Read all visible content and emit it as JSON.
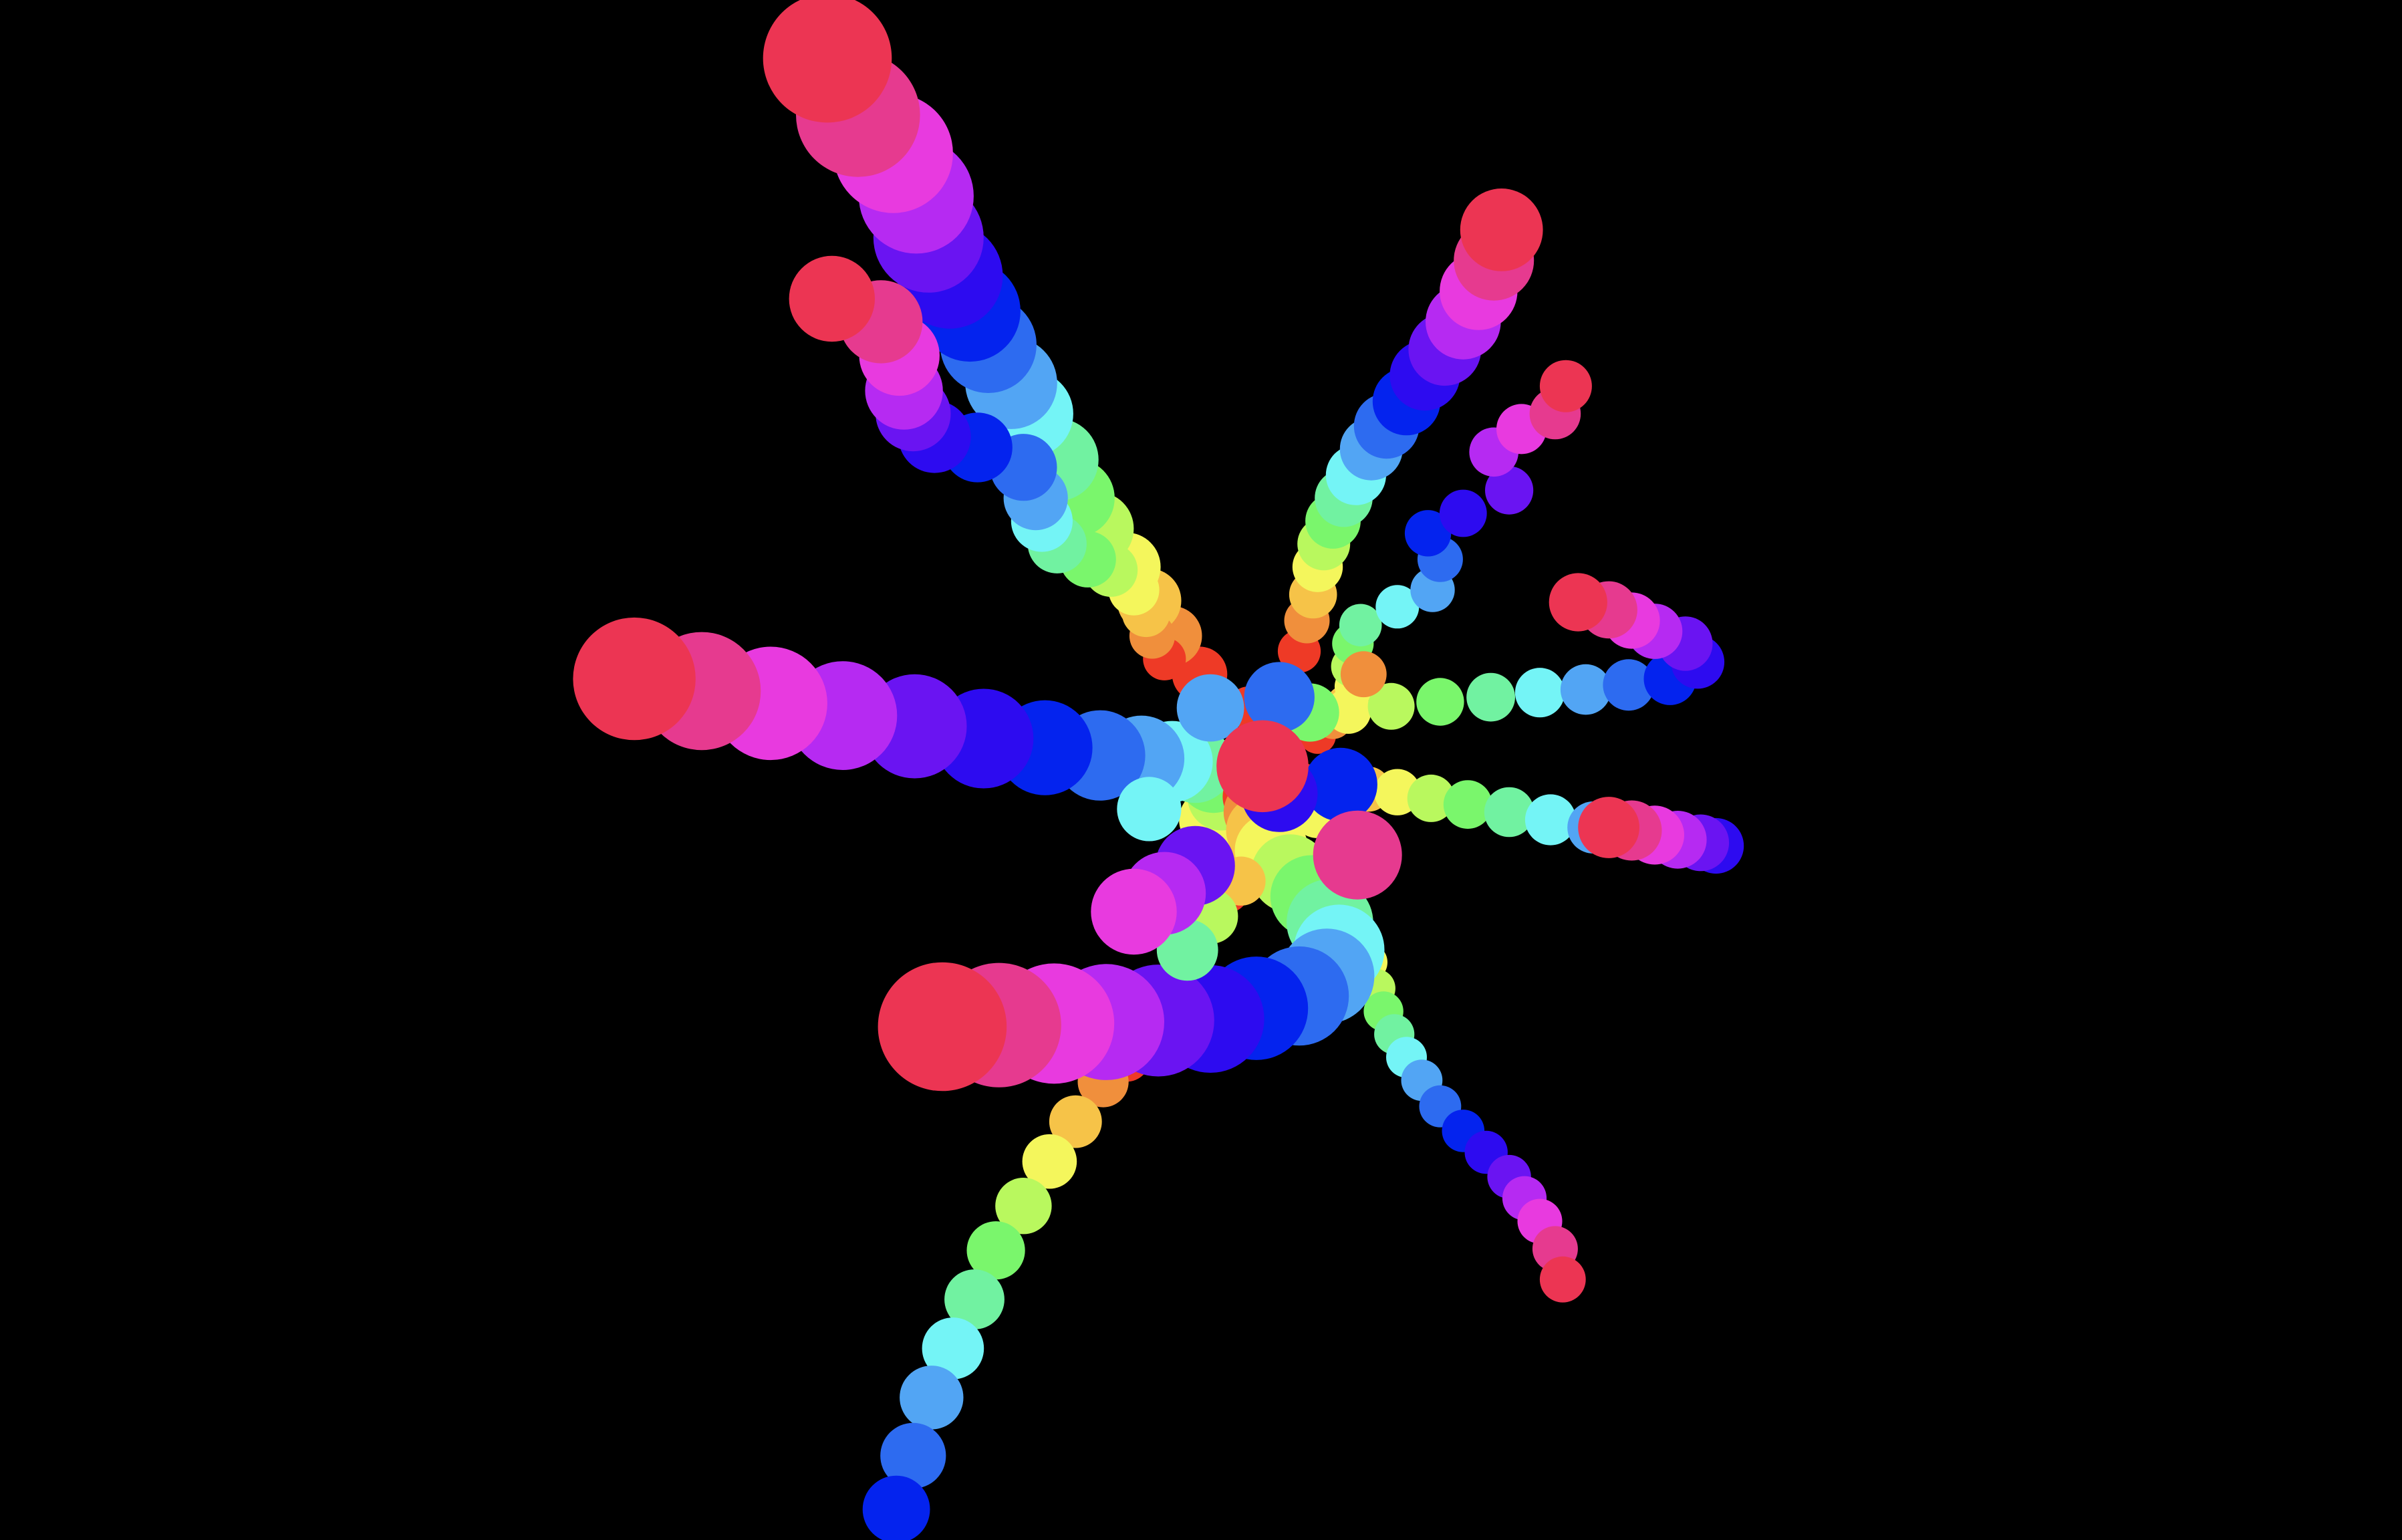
{
  "scene": {
    "background": "#000000",
    "palette": [
      "#ec3553",
      "#e63a8f",
      "#e83adf",
      "#b62af2",
      "#6a14f2",
      "#2d0bf0",
      "#0423ee",
      "#2d6bf0",
      "#52a5f4",
      "#74f4f6",
      "#71f2a1",
      "#7af66c",
      "#b9f85e",
      "#f4f65c",
      "#f6c348",
      "#f08f3c",
      "#ee3a26"
    ],
    "trails": [
      {
        "name": "upper-left-large-arm",
        "colors": [
          0,
          1,
          2,
          3,
          4,
          5,
          6,
          7,
          8,
          9,
          10,
          11,
          12,
          13,
          14,
          15,
          16
        ]
      },
      {
        "name": "upper-left-small-arm",
        "colors": [
          0,
          1,
          2,
          3,
          4,
          5,
          6,
          7,
          8,
          9,
          10,
          11,
          12,
          13,
          14,
          15,
          16
        ]
      },
      {
        "name": "upper-right-arm",
        "colors": [
          0,
          1,
          2,
          3,
          4,
          5,
          6,
          7,
          8,
          9,
          10,
          11,
          12,
          13,
          14,
          15,
          16
        ]
      },
      {
        "name": "upper-right-hook",
        "colors": [
          0,
          1,
          2,
          3,
          4,
          5,
          6,
          7,
          8,
          9,
          10,
          11,
          12,
          13,
          14,
          15,
          16
        ]
      },
      {
        "name": "right-hook",
        "colors": [
          0,
          1,
          2,
          3,
          4,
          5,
          6,
          7,
          8,
          9,
          10,
          11,
          12,
          13,
          14,
          15,
          16
        ]
      },
      {
        "name": "right-lower-arm",
        "colors": [
          0,
          1,
          2,
          3,
          4,
          5,
          6,
          7,
          8,
          9,
          10,
          11,
          12,
          13,
          14,
          15,
          16
        ]
      },
      {
        "name": "lower-right-arm",
        "colors": [
          0,
          1,
          2,
          3,
          4,
          5,
          6,
          7,
          8,
          9,
          10,
          11,
          12,
          13,
          14,
          15,
          16
        ]
      },
      {
        "name": "lower-left-arm",
        "colors": [
          6,
          7,
          8,
          9,
          10,
          11,
          12,
          13,
          14,
          15,
          16
        ]
      },
      {
        "name": "left-large-arm",
        "colors": [
          0,
          1,
          2,
          3,
          4,
          5,
          6,
          7,
          8,
          9,
          10,
          11,
          12,
          13,
          14,
          15,
          16
        ]
      },
      {
        "name": "bottom-curl-arm",
        "colors": [
          0,
          1,
          2,
          3,
          4,
          5,
          6,
          7,
          8,
          9,
          10,
          11,
          12,
          13,
          14,
          15,
          16
        ]
      },
      {
        "name": "center-cluster",
        "colors": [
          0,
          1,
          2,
          3,
          4,
          5,
          6,
          7,
          8,
          9,
          10,
          11,
          12,
          13,
          14,
          15,
          16
        ]
      }
    ]
  }
}
